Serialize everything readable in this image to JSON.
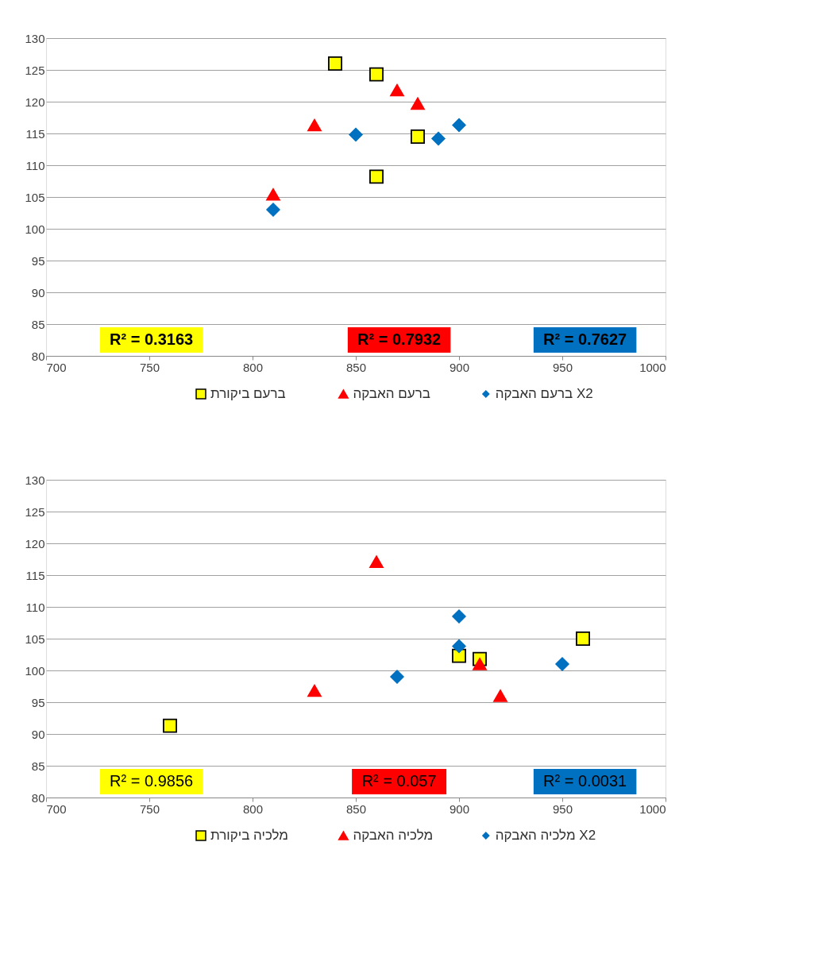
{
  "chart_data": [
    {
      "type": "scatter",
      "xlim": [
        700,
        1000
      ],
      "ylim": [
        80,
        130
      ],
      "xticks": [
        700,
        750,
        800,
        850,
        900,
        950,
        1000
      ],
      "yticks": [
        80,
        85,
        90,
        95,
        100,
        105,
        110,
        115,
        120,
        125,
        130
      ],
      "grid": "y",
      "legend": "bottom",
      "annotations": [
        "R² = 0.3163",
        "R² = 0.7932",
        "R² = 0.7627"
      ],
      "series": [
        {
          "name": "ברעם ביקורת",
          "color": "#ffff00",
          "marker": "square",
          "x": [
            840,
            860,
            880,
            860
          ],
          "values": [
            126,
            124.3,
            114.5,
            108.2
          ]
        },
        {
          "name": "ברעם האבקה",
          "color": "#ff0000",
          "marker": "triangle",
          "x": [
            810,
            830,
            870,
            880
          ],
          "values": [
            105.4,
            116.3,
            121.8,
            119.7
          ]
        },
        {
          "name": "ברעם האבקה X2",
          "color": "#0070c0",
          "marker": "diamond",
          "x": [
            810,
            850,
            890,
            900
          ],
          "values": [
            103,
            114.8,
            114.2,
            116.3
          ]
        }
      ]
    },
    {
      "type": "scatter",
      "xlim": [
        700,
        1000
      ],
      "ylim": [
        80,
        130
      ],
      "xticks": [
        700,
        750,
        800,
        850,
        900,
        950,
        1000
      ],
      "yticks": [
        80,
        85,
        90,
        95,
        100,
        105,
        110,
        115,
        120,
        125,
        130
      ],
      "grid": "y",
      "legend": "bottom",
      "annotations": [
        "R² = 0.9856",
        "R² = 0.057",
        "R² = 0.0031"
      ],
      "series": [
        {
          "name": "מלכיה ביקורת",
          "color": "#ffff00",
          "marker": "square",
          "x": [
            760,
            900,
            910,
            960
          ],
          "values": [
            91.3,
            102.3,
            101.8,
            105
          ]
        },
        {
          "name": "מלכיה האבקה",
          "color": "#ff0000",
          "marker": "triangle",
          "x": [
            830,
            860,
            910,
            920
          ],
          "values": [
            96.8,
            117.1,
            101,
            96
          ]
        },
        {
          "name": "מלכיה האבקה X2",
          "color": "#0070c0",
          "marker": "diamond",
          "x": [
            870,
            900,
            900,
            950
          ],
          "values": [
            99,
            108.5,
            103.8,
            101
          ]
        }
      ]
    }
  ]
}
